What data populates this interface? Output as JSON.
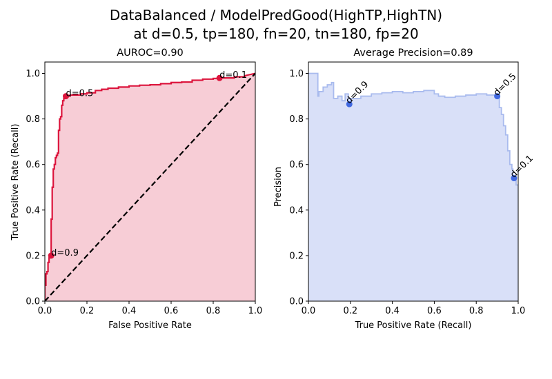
{
  "figure": {
    "title_line1": "DataBalanced / ModelPredGood(HighTP,HighTN)",
    "title_line2": "at d=0.5, tp=180, fn=20, tn=180, fp=20"
  },
  "chart_data": [
    {
      "type": "line",
      "title": "AUROC=0.90",
      "xlabel": "False Positive Rate",
      "ylabel": "True Positive Rate (Recall)",
      "xlim": [
        0,
        1
      ],
      "ylim": [
        0,
        1.05
      ],
      "xticks": [
        "0.0",
        "0.2",
        "0.4",
        "0.6",
        "0.8",
        "1.0"
      ],
      "yticks": [
        "0.0",
        "0.2",
        "0.4",
        "0.6",
        "0.8",
        "1.0"
      ],
      "grid": false,
      "colors": {
        "curve": "#dc143c",
        "fill": "#f7cdd6",
        "diagonal": "#000000"
      },
      "series": [
        {
          "x": [
            0.0,
            0.0,
            0.005,
            0.005,
            0.01,
            0.01,
            0.015,
            0.015,
            0.02,
            0.02,
            0.025,
            0.025,
            0.03,
            0.03,
            0.035,
            0.035,
            0.04,
            0.04,
            0.045,
            0.045,
            0.05,
            0.05,
            0.055,
            0.055,
            0.06,
            0.06,
            0.065,
            0.065,
            0.07,
            0.07,
            0.075,
            0.075,
            0.08,
            0.08,
            0.085,
            0.085,
            0.09,
            0.09,
            0.095,
            0.095,
            0.1,
            0.1,
            0.11,
            0.11,
            0.12,
            0.12,
            0.17,
            0.17,
            0.2,
            0.2,
            0.24,
            0.24,
            0.27,
            0.27,
            0.3,
            0.3,
            0.35,
            0.35,
            0.4,
            0.4,
            0.45,
            0.45,
            0.5,
            0.5,
            0.55,
            0.55,
            0.6,
            0.6,
            0.65,
            0.65,
            0.7,
            0.7,
            0.75,
            0.75,
            0.8,
            0.8,
            0.83,
            0.83,
            0.9,
            0.9,
            0.95,
            0.95,
            1.0
          ],
          "y": [
            0.0,
            0.07,
            0.07,
            0.12,
            0.12,
            0.13,
            0.13,
            0.17,
            0.17,
            0.19,
            0.19,
            0.2,
            0.2,
            0.36,
            0.36,
            0.5,
            0.5,
            0.58,
            0.58,
            0.6,
            0.6,
            0.63,
            0.63,
            0.64,
            0.64,
            0.65,
            0.65,
            0.75,
            0.75,
            0.8,
            0.8,
            0.81,
            0.81,
            0.86,
            0.86,
            0.88,
            0.88,
            0.89,
            0.89,
            0.9,
            0.9,
            0.905,
            0.905,
            0.9,
            0.9,
            0.905,
            0.905,
            0.91,
            0.91,
            0.915,
            0.915,
            0.925,
            0.925,
            0.93,
            0.93,
            0.935,
            0.935,
            0.94,
            0.94,
            0.945,
            0.945,
            0.948,
            0.948,
            0.95,
            0.95,
            0.955,
            0.955,
            0.96,
            0.96,
            0.962,
            0.962,
            0.97,
            0.97,
            0.975,
            0.975,
            0.978,
            0.978,
            0.98,
            0.98,
            0.985,
            0.985,
            0.99,
            1.0
          ]
        },
        {
          "x": [
            0,
            1
          ],
          "y": [
            0,
            1
          ]
        }
      ],
      "points": [
        {
          "label": "d=0.9",
          "x": 0.03,
          "y": 0.2
        },
        {
          "label": "d=0.5",
          "x": 0.1,
          "y": 0.9
        },
        {
          "label": "d=0.1",
          "x": 0.83,
          "y": 0.98
        }
      ]
    },
    {
      "type": "area",
      "title": "Average Precision=0.89",
      "xlabel": "True Positive Rate (Recall)",
      "ylabel": "Precision",
      "xlim": [
        0,
        1
      ],
      "ylim": [
        0,
        1.05
      ],
      "xticks": [
        "0.0",
        "0.2",
        "0.4",
        "0.6",
        "0.8",
        "1.0"
      ],
      "yticks": [
        "0.0",
        "0.2",
        "0.4",
        "0.6",
        "0.8",
        "1.0"
      ],
      "grid": false,
      "colors": {
        "curve": "#a9bbee",
        "fill": "#d9e0f8",
        "point": "#4169e1"
      },
      "series": [
        {
          "x": [
            0.0,
            0.045,
            0.045,
            0.05,
            0.05,
            0.07,
            0.07,
            0.09,
            0.09,
            0.11,
            0.11,
            0.12,
            0.12,
            0.14,
            0.14,
            0.16,
            0.16,
            0.175,
            0.175,
            0.19,
            0.19,
            0.2,
            0.2,
            0.25,
            0.25,
            0.3,
            0.3,
            0.35,
            0.35,
            0.4,
            0.4,
            0.45,
            0.45,
            0.5,
            0.5,
            0.55,
            0.55,
            0.6,
            0.6,
            0.62,
            0.62,
            0.65,
            0.65,
            0.7,
            0.7,
            0.75,
            0.75,
            0.8,
            0.8,
            0.85,
            0.85,
            0.9,
            0.9,
            0.91,
            0.91,
            0.92,
            0.92,
            0.93,
            0.93,
            0.94,
            0.94,
            0.95,
            0.95,
            0.96,
            0.96,
            0.97,
            0.97,
            0.975,
            0.975,
            0.98,
            0.98,
            0.99,
            0.99,
            1.0
          ],
          "y": [
            1.0,
            1.0,
            0.9,
            0.9,
            0.92,
            0.92,
            0.94,
            0.94,
            0.95,
            0.95,
            0.96,
            0.96,
            0.89,
            0.89,
            0.9,
            0.9,
            0.88,
            0.88,
            0.91,
            0.91,
            0.87,
            0.87,
            0.89,
            0.89,
            0.9,
            0.9,
            0.91,
            0.91,
            0.915,
            0.915,
            0.92,
            0.92,
            0.915,
            0.915,
            0.92,
            0.92,
            0.925,
            0.925,
            0.91,
            0.91,
            0.9,
            0.9,
            0.895,
            0.895,
            0.9,
            0.9,
            0.905,
            0.905,
            0.91,
            0.91,
            0.905,
            0.905,
            0.9,
            0.9,
            0.85,
            0.85,
            0.82,
            0.82,
            0.77,
            0.77,
            0.73,
            0.73,
            0.66,
            0.66,
            0.6,
            0.6,
            0.58,
            0.58,
            0.55,
            0.55,
            0.54,
            0.54,
            0.51,
            0.51
          ]
        }
      ],
      "points": [
        {
          "label": "d=0.9",
          "x": 0.195,
          "y": 0.865
        },
        {
          "label": "d=0.5",
          "x": 0.9,
          "y": 0.9
        },
        {
          "label": "d=0.1",
          "x": 0.98,
          "y": 0.54
        }
      ]
    }
  ]
}
